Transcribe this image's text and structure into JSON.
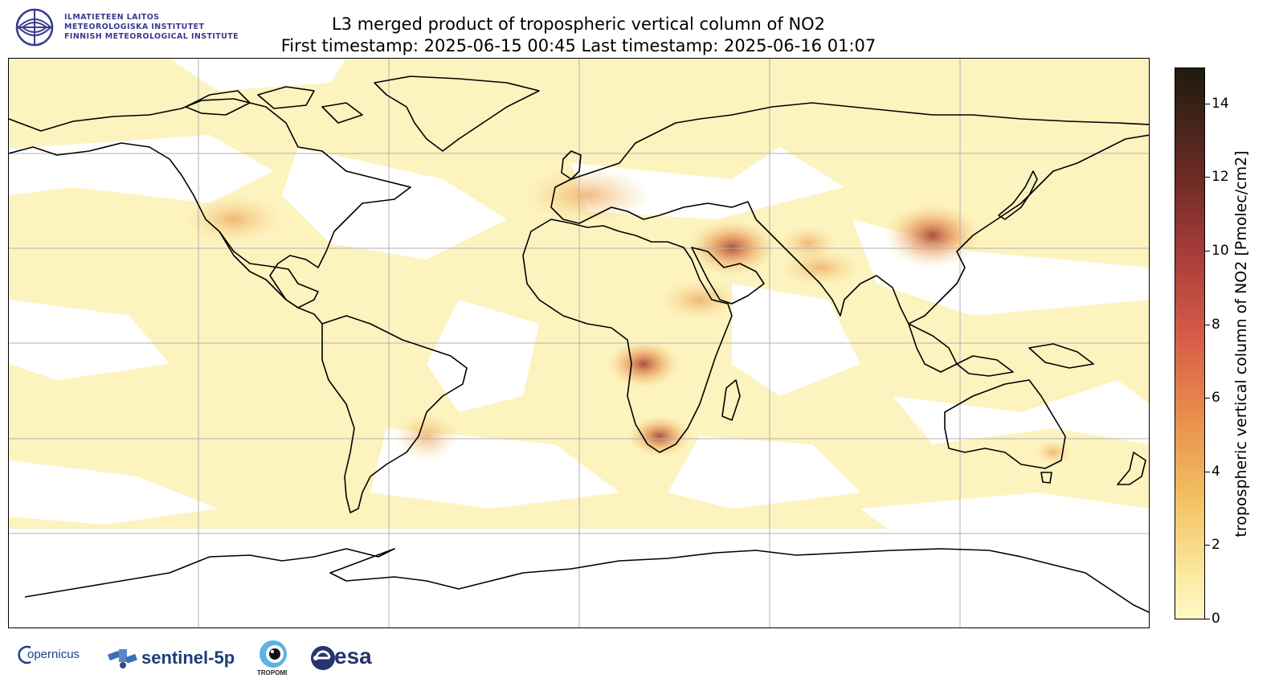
{
  "header": {
    "org_lines": [
      "ILMATIETEEN LAITOS",
      "METEOROLOGISKA INSTITUTET",
      "FINNISH METEOROLOGICAL INSTITUTE"
    ],
    "title_line1": "L3 merged product of tropospheric vertical column of NO2",
    "title_line2": "First timestamp: 2025-06-15 00:45   Last timestamp: 2025-06-16 01:07"
  },
  "map": {
    "projection": "equirectangular",
    "gridlines": true,
    "background_fill": "#fdf3bf",
    "coastline_color": "#000000",
    "hotspots": [
      "Middle East",
      "eastern China",
      "southern Africa (Highveld)",
      "central Africa fires",
      "northern India"
    ]
  },
  "colorbar": {
    "label": "tropospheric vertical column of NO2 [Pmolec/cm2]",
    "ticks": [
      "0",
      "2",
      "4",
      "6",
      "8",
      "10",
      "12",
      "14"
    ],
    "range": [
      0,
      15
    ],
    "colormap": [
      "#fff8c6",
      "#f2c060",
      "#e8894b",
      "#d55a47",
      "#a83d3a",
      "#6e2b25",
      "#211a0e"
    ]
  },
  "footer": {
    "logos": [
      "copernicus-logo",
      "sentinel-5p-logo",
      "tropomi-logo",
      "esa-logo"
    ],
    "copernicus_text": "opernicus",
    "sentinel_text": "sentinel-5p",
    "tropomi_text": "TROPOMI",
    "esa_text": "esa"
  }
}
